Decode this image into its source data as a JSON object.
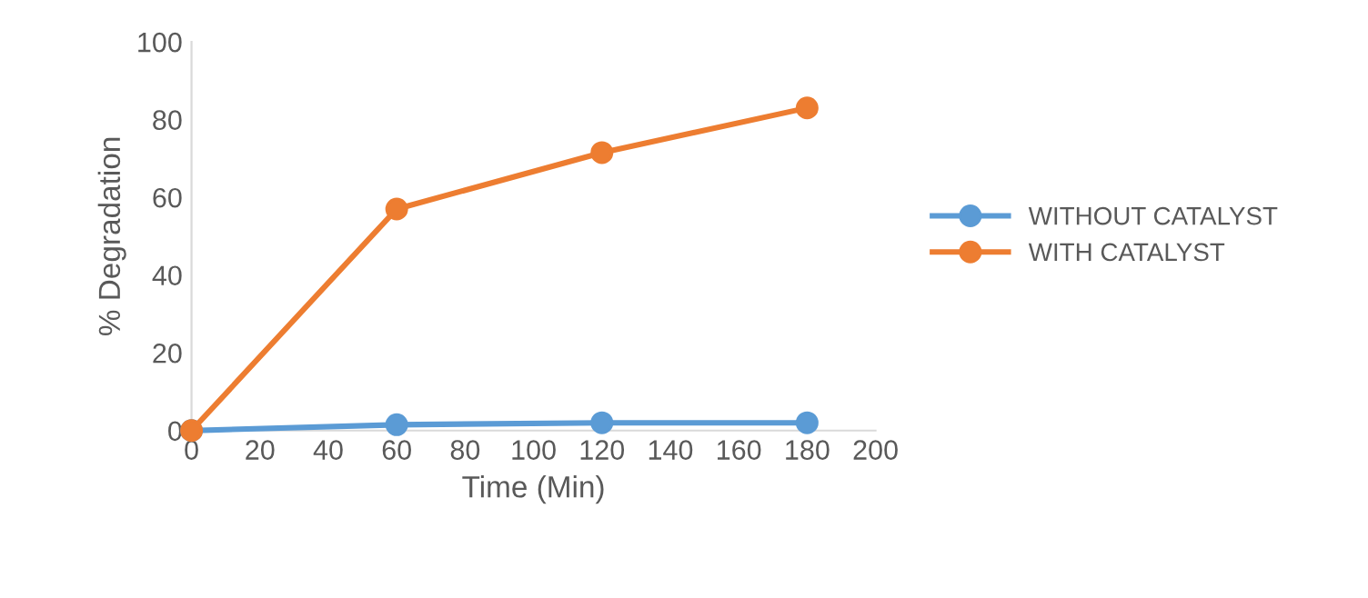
{
  "chart_data": {
    "type": "line",
    "xlabel": "Time (Min)",
    "ylabel": "% Degradation",
    "x": [
      0,
      60,
      120,
      180
    ],
    "series": [
      {
        "name": "WITHOUT CATALYST",
        "color": "#5b9bd5",
        "values": [
          0,
          1.5,
          2,
          2
        ]
      },
      {
        "name": "WITH CATALYST",
        "color": "#ed7d31",
        "values": [
          0,
          57,
          71.5,
          83
        ]
      }
    ],
    "xlim": [
      0,
      200
    ],
    "xticks": [
      0,
      20,
      40,
      60,
      80,
      100,
      120,
      140,
      160,
      180,
      200
    ],
    "ylim": [
      0,
      100
    ],
    "yticks": [
      0,
      20,
      40,
      60,
      80,
      100
    ],
    "grid": false,
    "legend": "right",
    "marker": "circle",
    "line_style": "solid"
  }
}
